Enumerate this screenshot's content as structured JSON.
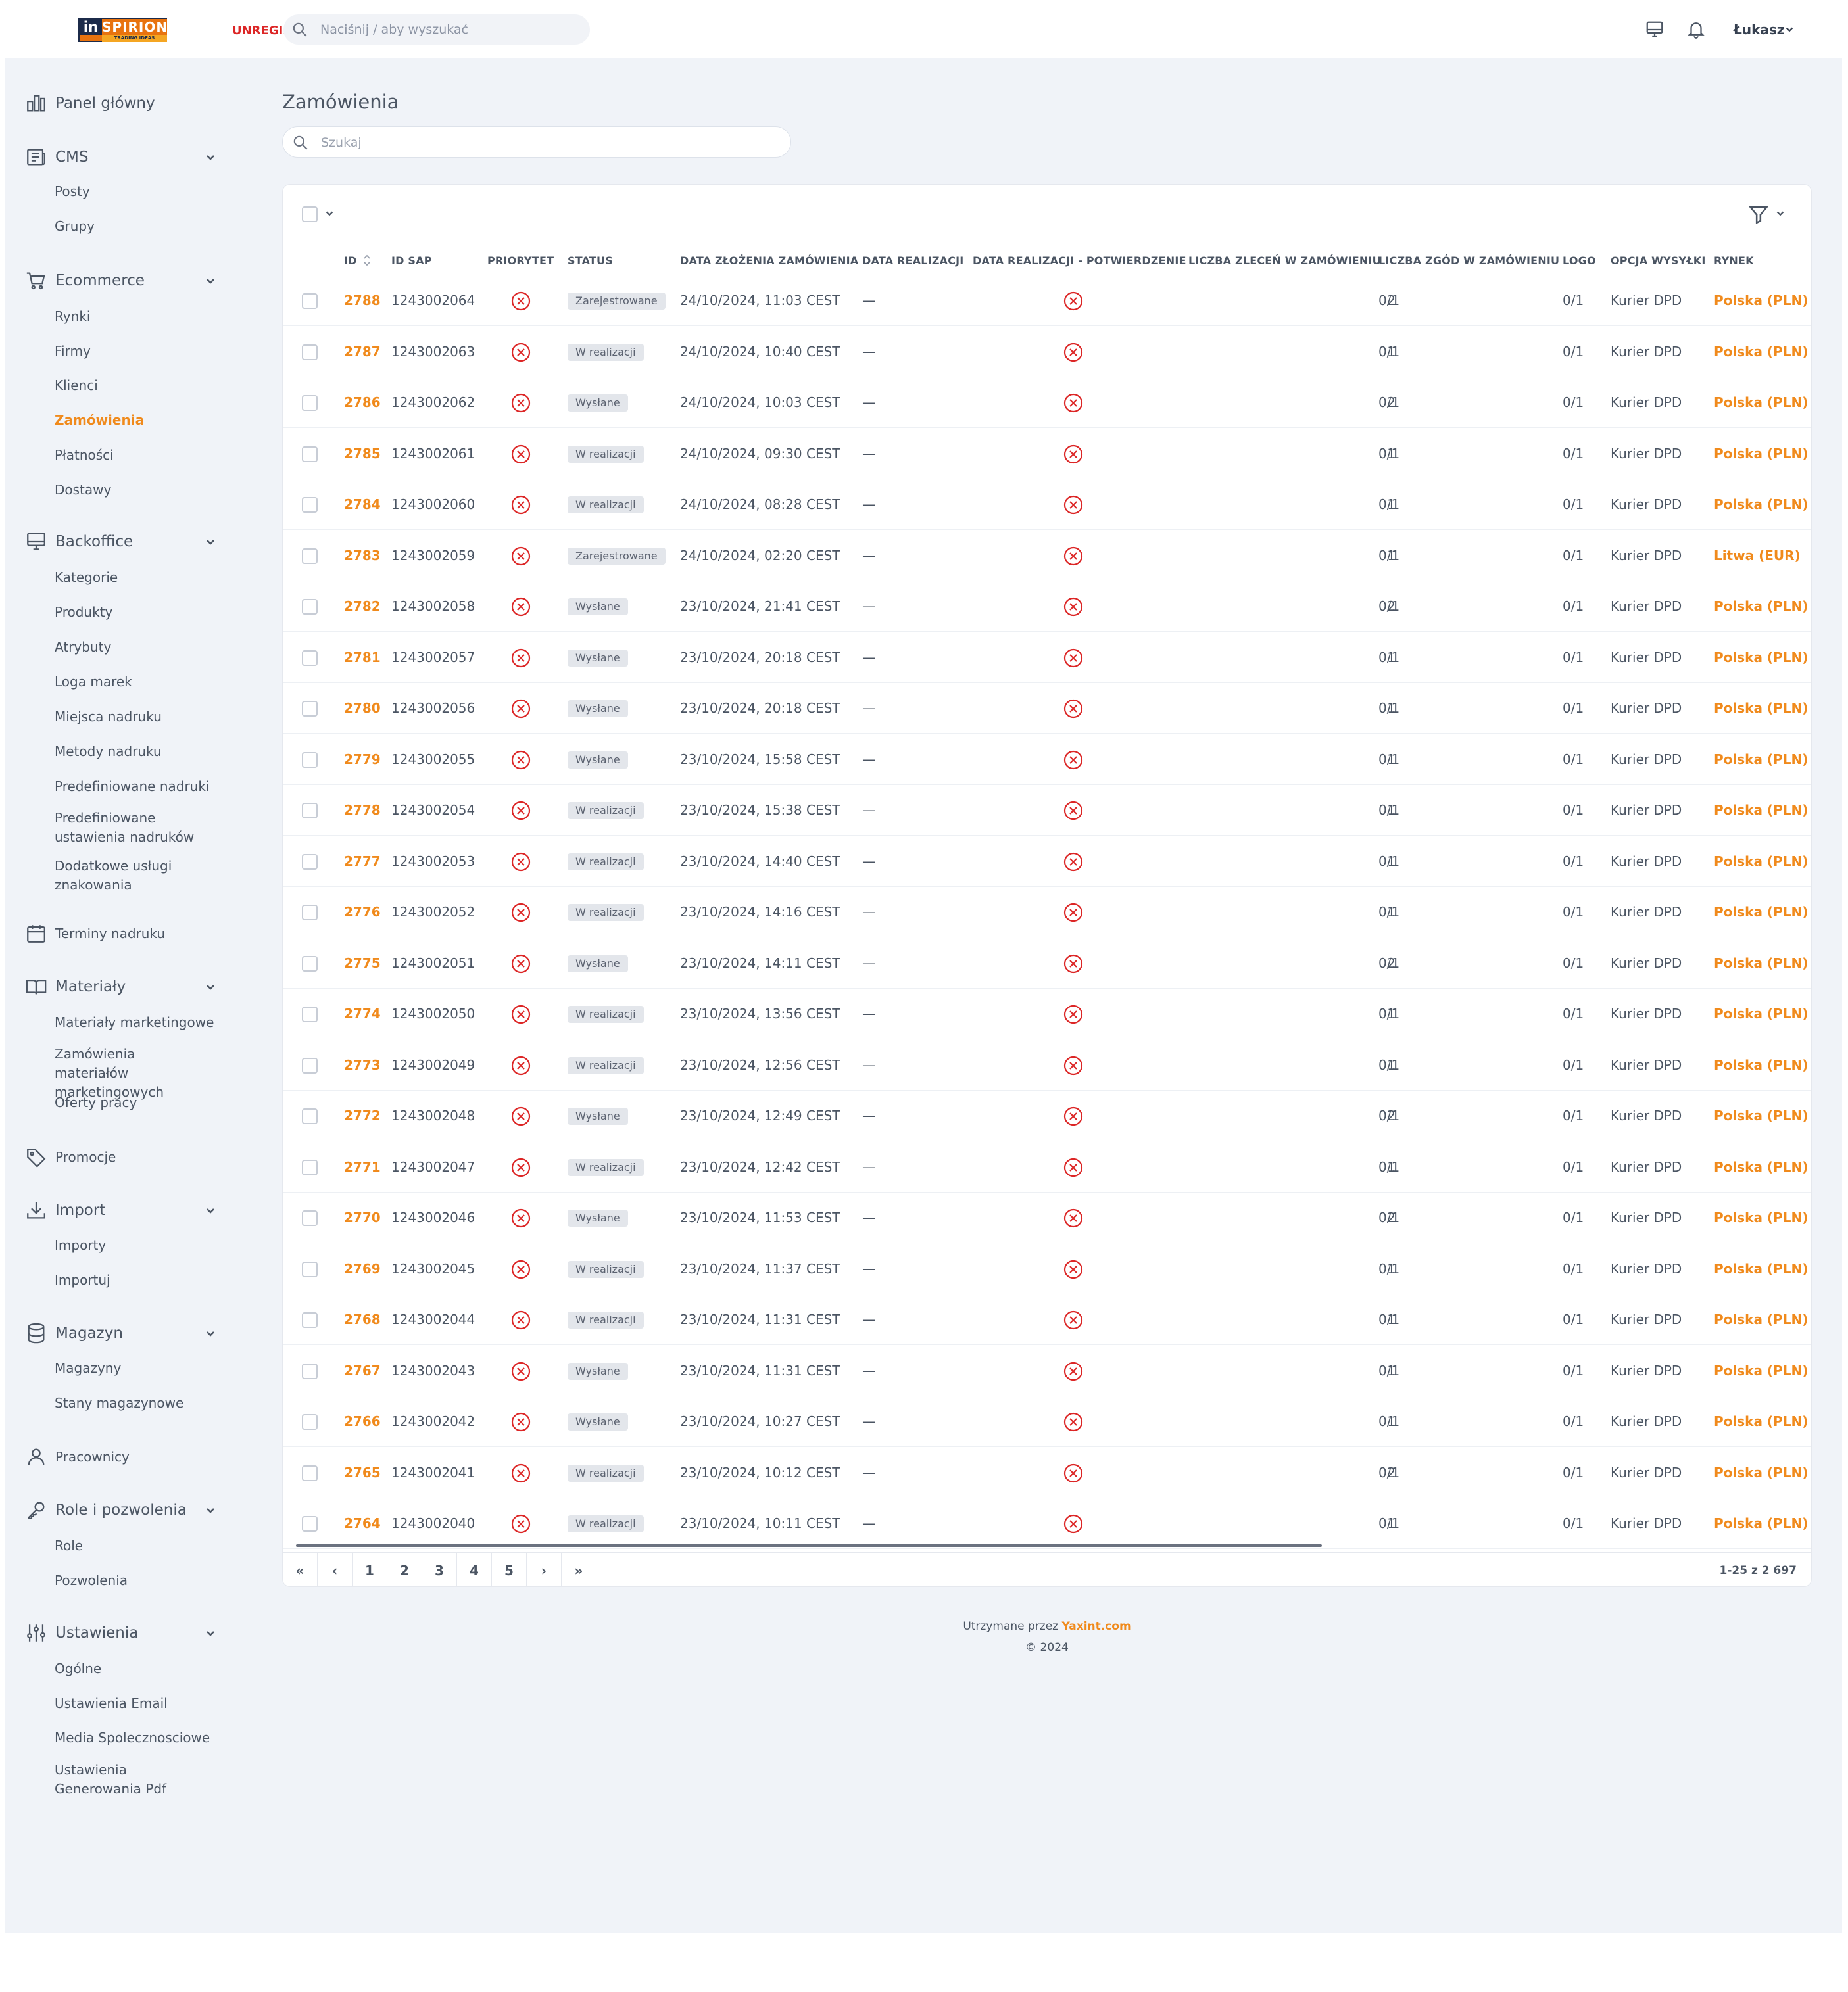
{
  "header": {
    "logo_text": "in",
    "logo_brand": "SPIRION",
    "logo_tag": "TRADING IDEAS",
    "env_label": "UNREGIS",
    "search_placeholder": "Naciśnij / aby wyszukać",
    "user_name": "Łukasz"
  },
  "sidebar": {
    "sections": [
      {
        "label": "Panel główny",
        "icon": "chart-bar-icon",
        "items": []
      },
      {
        "label": "CMS",
        "icon": "newspaper-icon",
        "collapsible": true,
        "items": [
          "Posty",
          "Grupy"
        ]
      },
      {
        "label": "Ecommerce",
        "icon": "shopping-cart-icon",
        "collapsible": true,
        "items": [
          "Rynki",
          "Firmy",
          "Klienci",
          "Zamówienia",
          "Płatności",
          "Dostawy"
        ],
        "active_item": "Zamówienia"
      },
      {
        "label": "Backoffice",
        "icon": "desktop-icon",
        "collapsible": true,
        "items": [
          "Kategorie",
          "Produkty",
          "Atrybuty",
          "Loga marek",
          "Miejsca nadruku",
          "Metody nadruku",
          "Predefiniowane nadruki",
          "Predefiniowane ustawienia nadruków",
          "Dodatkowe usługi znakowania"
        ]
      },
      {
        "label": "Terminy nadruku",
        "icon": "calendar-icon",
        "items": []
      },
      {
        "label": "Materiały",
        "icon": "book-open-icon",
        "collapsible": true,
        "items": [
          "Materiały marketingowe",
          "Zamówienia materiałów marketingowych",
          "Oferty pracy"
        ]
      },
      {
        "label": "Promocje",
        "icon": "tag-icon",
        "items": []
      },
      {
        "label": "Import",
        "icon": "download-icon",
        "collapsible": true,
        "items": [
          "Importy",
          "Importuj"
        ]
      },
      {
        "label": "Magazyn",
        "icon": "database-icon",
        "collapsible": true,
        "items": [
          "Magazyny",
          "Stany magazynowe"
        ]
      },
      {
        "label": "Pracownicy",
        "icon": "user-icon",
        "items": []
      },
      {
        "label": "Role i pozwolenia",
        "icon": "key-icon",
        "collapsible": true,
        "items": [
          "Role",
          "Pozwolenia"
        ]
      },
      {
        "label": "Ustawienia",
        "icon": "sliders-icon",
        "collapsible": true,
        "items": [
          "Ogólne",
          "Ustawienia Email",
          "Media Spolecznosciowe",
          "Ustawienia Generowania Pdf"
        ]
      }
    ]
  },
  "page": {
    "title": "Zamówienia",
    "search_placeholder": "Szukaj"
  },
  "table": {
    "columns": [
      "ID",
      "ID SAP",
      "PRIORYTET",
      "STATUS",
      "DATA ZŁOŻENIA ZAMÓWIENIA",
      "DATA REALIZACJI",
      "DATA REALIZACJI - POTWIERDZENIE",
      "LICZBA ZLECEŃ W ZAMÓWIENIU",
      "LICZBA ZGÓD W ZAMÓWIENIU",
      "LOGO",
      "OPCJA WYSYŁKI",
      "RYNEK"
    ],
    "rows": [
      {
        "id": "2788",
        "sap": "1243002064",
        "status": "Zarejestrowane",
        "date": "24/10/2024, 11:03 CEST",
        "realization": "—",
        "orders": "2",
        "consents": "0/1",
        "logo": "0/1",
        "shipping": "Kurier DPD",
        "market": "Polska (PLN)"
      },
      {
        "id": "2787",
        "sap": "1243002063",
        "status": "W realizacji",
        "date": "24/10/2024, 10:40 CEST",
        "realization": "—",
        "orders": "1",
        "consents": "0/1",
        "logo": "0/1",
        "shipping": "Kurier DPD",
        "market": "Polska (PLN)"
      },
      {
        "id": "2786",
        "sap": "1243002062",
        "status": "Wysłane",
        "date": "24/10/2024, 10:03 CEST",
        "realization": "—",
        "orders": "2",
        "consents": "0/1",
        "logo": "0/1",
        "shipping": "Kurier DPD",
        "market": "Polska (PLN)"
      },
      {
        "id": "2785",
        "sap": "1243002061",
        "status": "W realizacji",
        "date": "24/10/2024, 09:30 CEST",
        "realization": "—",
        "orders": "1",
        "consents": "0/1",
        "logo": "0/1",
        "shipping": "Kurier DPD",
        "market": "Polska (PLN)"
      },
      {
        "id": "2784",
        "sap": "1243002060",
        "status": "W realizacji",
        "date": "24/10/2024, 08:28 CEST",
        "realization": "—",
        "orders": "1",
        "consents": "0/1",
        "logo": "0/1",
        "shipping": "Kurier DPD",
        "market": "Polska (PLN)"
      },
      {
        "id": "2783",
        "sap": "1243002059",
        "status": "Zarejestrowane",
        "date": "24/10/2024, 02:20 CEST",
        "realization": "—",
        "orders": "1",
        "consents": "0/1",
        "logo": "0/1",
        "shipping": "Kurier DPD",
        "market": "Litwa (EUR)"
      },
      {
        "id": "2782",
        "sap": "1243002058",
        "status": "Wysłane",
        "date": "23/10/2024, 21:41 CEST",
        "realization": "—",
        "orders": "2",
        "consents": "0/1",
        "logo": "0/1",
        "shipping": "Kurier DPD",
        "market": "Polska (PLN)"
      },
      {
        "id": "2781",
        "sap": "1243002057",
        "status": "Wysłane",
        "date": "23/10/2024, 20:18 CEST",
        "realization": "—",
        "orders": "1",
        "consents": "0/1",
        "logo": "0/1",
        "shipping": "Kurier DPD",
        "market": "Polska (PLN)"
      },
      {
        "id": "2780",
        "sap": "1243002056",
        "status": "Wysłane",
        "date": "23/10/2024, 20:18 CEST",
        "realization": "—",
        "orders": "1",
        "consents": "0/1",
        "logo": "0/1",
        "shipping": "Kurier DPD",
        "market": "Polska (PLN)"
      },
      {
        "id": "2779",
        "sap": "1243002055",
        "status": "Wysłane",
        "date": "23/10/2024, 15:58 CEST",
        "realization": "—",
        "orders": "1",
        "consents": "0/1",
        "logo": "0/1",
        "shipping": "Kurier DPD",
        "market": "Polska (PLN)"
      },
      {
        "id": "2778",
        "sap": "1243002054",
        "status": "W realizacji",
        "date": "23/10/2024, 15:38 CEST",
        "realization": "—",
        "orders": "1",
        "consents": "0/1",
        "logo": "0/1",
        "shipping": "Kurier DPD",
        "market": "Polska (PLN)"
      },
      {
        "id": "2777",
        "sap": "1243002053",
        "status": "W realizacji",
        "date": "23/10/2024, 14:40 CEST",
        "realization": "—",
        "orders": "1",
        "consents": "0/1",
        "logo": "0/1",
        "shipping": "Kurier DPD",
        "market": "Polska (PLN)"
      },
      {
        "id": "2776",
        "sap": "1243002052",
        "status": "W realizacji",
        "date": "23/10/2024, 14:16 CEST",
        "realization": "—",
        "orders": "1",
        "consents": "0/1",
        "logo": "0/1",
        "shipping": "Kurier DPD",
        "market": "Polska (PLN)"
      },
      {
        "id": "2775",
        "sap": "1243002051",
        "status": "Wysłane",
        "date": "23/10/2024, 14:11 CEST",
        "realization": "—",
        "orders": "2",
        "consents": "0/1",
        "logo": "0/1",
        "shipping": "Kurier DPD",
        "market": "Polska (PLN)"
      },
      {
        "id": "2774",
        "sap": "1243002050",
        "status": "W realizacji",
        "date": "23/10/2024, 13:56 CEST",
        "realization": "—",
        "orders": "1",
        "consents": "0/1",
        "logo": "0/1",
        "shipping": "Kurier DPD",
        "market": "Polska (PLN)"
      },
      {
        "id": "2773",
        "sap": "1243002049",
        "status": "W realizacji",
        "date": "23/10/2024, 12:56 CEST",
        "realization": "—",
        "orders": "1",
        "consents": "0/1",
        "logo": "0/1",
        "shipping": "Kurier DPD",
        "market": "Polska (PLN)"
      },
      {
        "id": "2772",
        "sap": "1243002048",
        "status": "Wysłane",
        "date": "23/10/2024, 12:49 CEST",
        "realization": "—",
        "orders": "2",
        "consents": "0/1",
        "logo": "0/1",
        "shipping": "Kurier DPD",
        "market": "Polska (PLN)"
      },
      {
        "id": "2771",
        "sap": "1243002047",
        "status": "W realizacji",
        "date": "23/10/2024, 12:42 CEST",
        "realization": "—",
        "orders": "1",
        "consents": "0/1",
        "logo": "0/1",
        "shipping": "Kurier DPD",
        "market": "Polska (PLN)"
      },
      {
        "id": "2770",
        "sap": "1243002046",
        "status": "Wysłane",
        "date": "23/10/2024, 11:53 CEST",
        "realization": "—",
        "orders": "2",
        "consents": "0/1",
        "logo": "0/1",
        "shipping": "Kurier DPD",
        "market": "Polska (PLN)"
      },
      {
        "id": "2769",
        "sap": "1243002045",
        "status": "W realizacji",
        "date": "23/10/2024, 11:37 CEST",
        "realization": "—",
        "orders": "1",
        "consents": "0/1",
        "logo": "0/1",
        "shipping": "Kurier DPD",
        "market": "Polska (PLN)"
      },
      {
        "id": "2768",
        "sap": "1243002044",
        "status": "W realizacji",
        "date": "23/10/2024, 11:31 CEST",
        "realization": "—",
        "orders": "1",
        "consents": "0/1",
        "logo": "0/1",
        "shipping": "Kurier DPD",
        "market": "Polska (PLN)"
      },
      {
        "id": "2767",
        "sap": "1243002043",
        "status": "Wysłane",
        "date": "23/10/2024, 11:31 CEST",
        "realization": "—",
        "orders": "1",
        "consents": "0/1",
        "logo": "0/1",
        "shipping": "Kurier DPD",
        "market": "Polska (PLN)"
      },
      {
        "id": "2766",
        "sap": "1243002042",
        "status": "Wysłane",
        "date": "23/10/2024, 10:27 CEST",
        "realization": "—",
        "orders": "1",
        "consents": "0/1",
        "logo": "0/1",
        "shipping": "Kurier DPD",
        "market": "Polska (PLN)"
      },
      {
        "id": "2765",
        "sap": "1243002041",
        "status": "W realizacji",
        "date": "23/10/2024, 10:12 CEST",
        "realization": "—",
        "orders": "2",
        "consents": "0/1",
        "logo": "0/1",
        "shipping": "Kurier DPD",
        "market": "Polska (PLN)"
      },
      {
        "id": "2764",
        "sap": "1243002040",
        "status": "W realizacji",
        "date": "23/10/2024, 10:11 CEST",
        "realization": "—",
        "orders": "1",
        "consents": "0/1",
        "logo": "0/1",
        "shipping": "Kurier DPD",
        "market": "Polska (PLN)"
      }
    ]
  },
  "pagination": {
    "buttons": [
      "«",
      "‹",
      "1",
      "2",
      "3",
      "4",
      "5",
      "›",
      "»"
    ],
    "range": "1-25 z 2 697"
  },
  "footer": {
    "maintained_by": "Utrzymane przez",
    "company": "Yaxint.com",
    "copyright": "© 2024"
  },
  "colors": {
    "accent": "#f08a1c",
    "danger": "#dc2626",
    "background": "#f0f3f8"
  }
}
